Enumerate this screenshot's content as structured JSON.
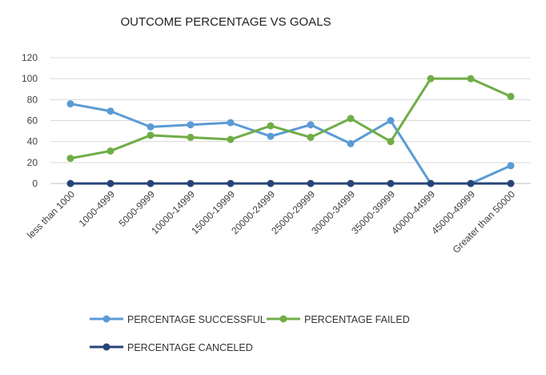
{
  "chart_data": {
    "type": "line",
    "title": "OUTCOME PERCENTAGE VS GOALS",
    "xlabel": "",
    "ylabel": "",
    "ylim": [
      0,
      120
    ],
    "yticks": [
      0,
      20,
      40,
      60,
      80,
      100,
      120
    ],
    "grid": true,
    "legend_position": "bottom",
    "categories": [
      "less than 1000",
      "1000-4999",
      "5000-9999",
      "10000-14999",
      "15000-19999",
      "20000-24999",
      "25000-29999",
      "30000-34999",
      "35000-39999",
      "40000-44999",
      "45000-49999",
      "Greater than 50000"
    ],
    "series": [
      {
        "name": "PERCENTAGE SUCCESSFUL",
        "color": "#5b9bd5",
        "values": [
          76,
          69,
          54,
          56,
          58,
          45,
          56,
          38,
          60,
          0,
          0,
          17
        ]
      },
      {
        "name": "PERCENTAGE FAILED",
        "color": "#70ad47",
        "values": [
          24,
          31,
          46,
          44,
          42,
          55,
          44,
          62,
          40,
          100,
          100,
          83
        ]
      },
      {
        "name": "PERCENTAGE CANCELED",
        "color": "#264478",
        "values": [
          0,
          0,
          0,
          0,
          0,
          0,
          0,
          0,
          0,
          0,
          0,
          0
        ]
      }
    ]
  }
}
